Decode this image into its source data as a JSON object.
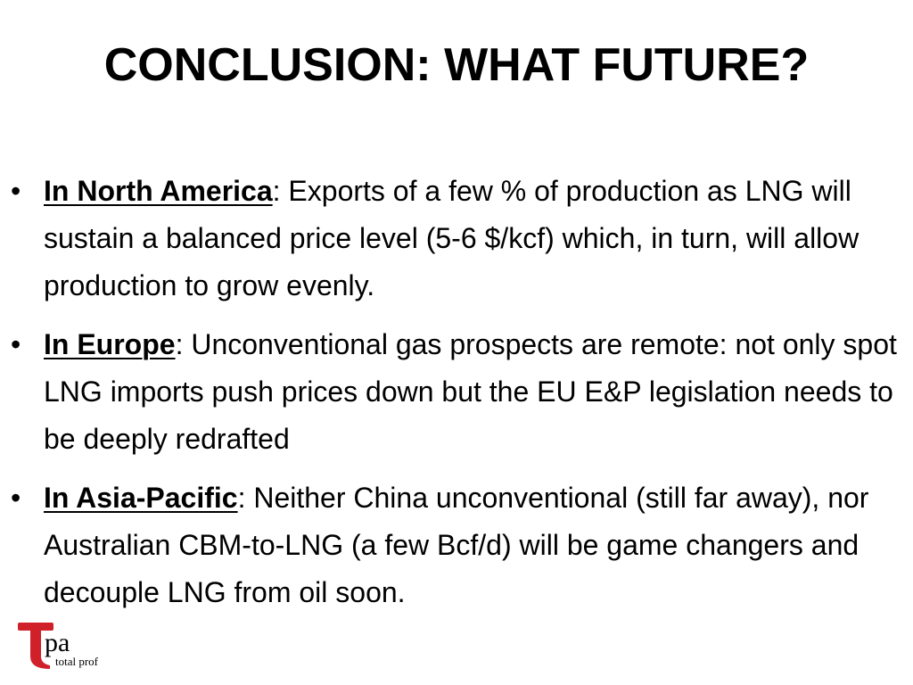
{
  "slide": {
    "title": "CONCLUSION: WHAT FUTURE?",
    "bullets": [
      {
        "marker": "•",
        "region": "In North America",
        "separator": ":",
        "text": " Exports of a few % of production as LNG will sustain a balanced price level (5-6 $/kcf) which, in turn, will allow production to grow evenly."
      },
      {
        "marker": "•",
        "region": "In Europe",
        "separator": ":",
        "text": " Unconventional gas prospects are remote: not only spot LNG imports push prices down but the EU E&P legislation needs to be deeply redrafted"
      },
      {
        "marker": "•",
        "region": "In Asia-Pacific",
        "separator": ":",
        "text": " Neither China unconventional (still far away), nor Australian CBM-to-LNG (a few Bcf/d) will be game changers and decouple LNG from oil soon."
      }
    ]
  },
  "logo": {
    "letters": "pa",
    "tagline": "total prof",
    "colors": {
      "brand_red": "#d0202a",
      "text": "#000000"
    }
  }
}
